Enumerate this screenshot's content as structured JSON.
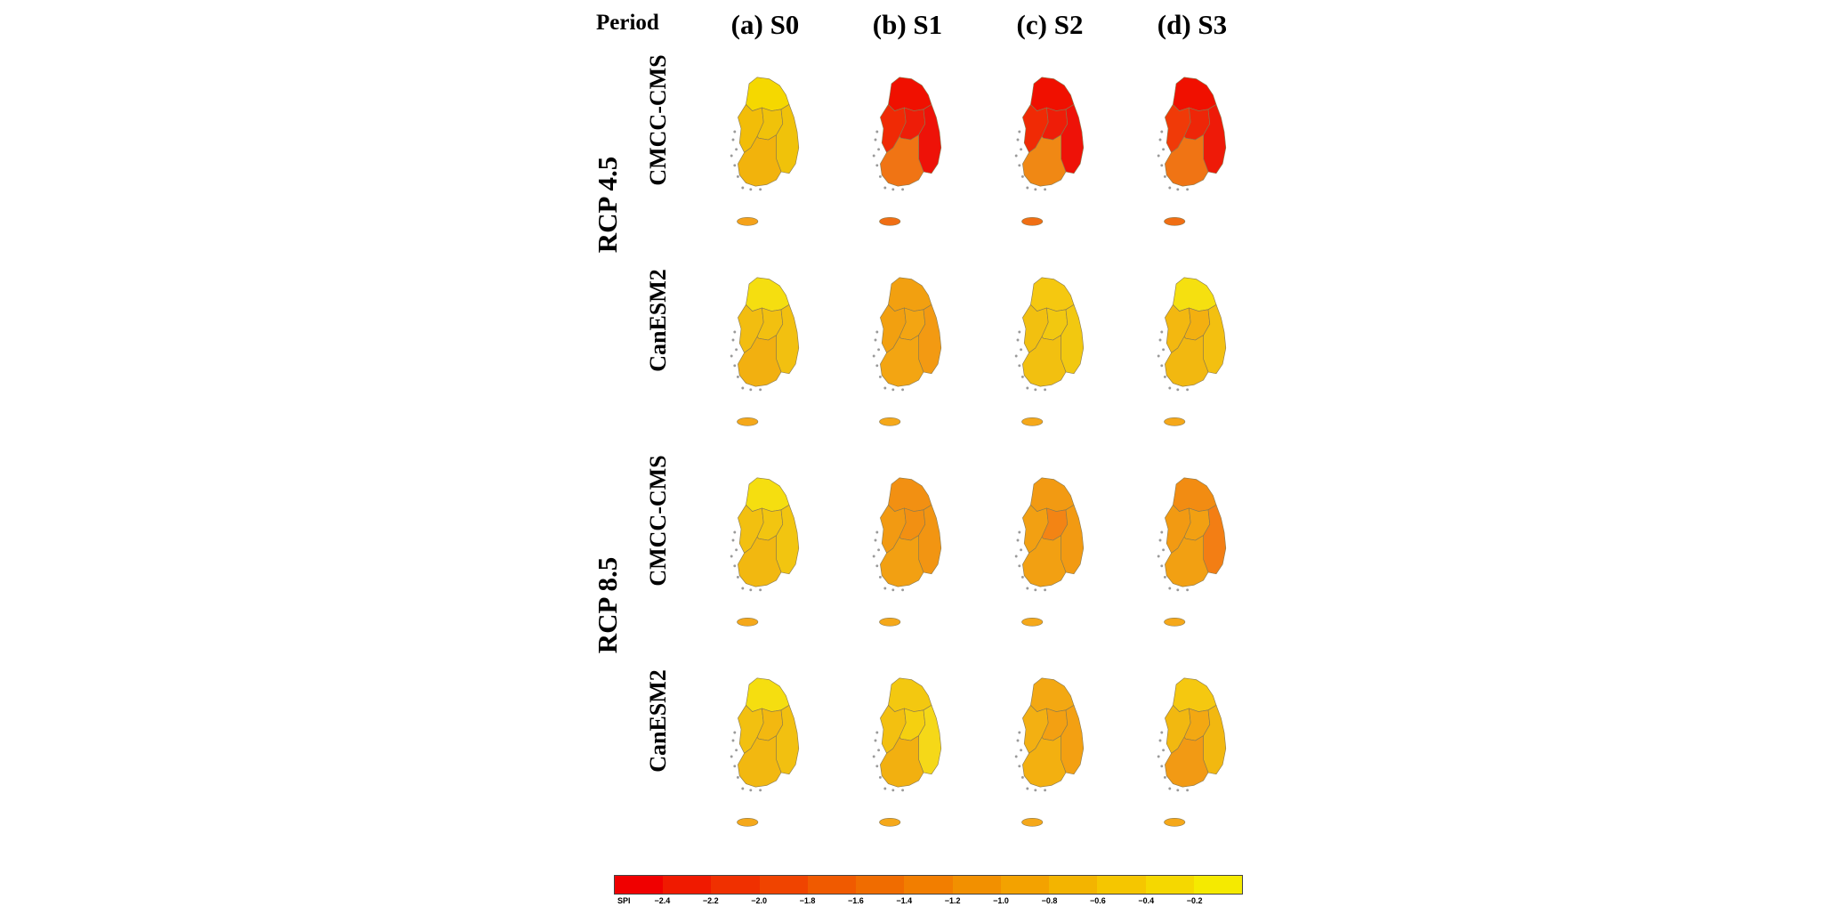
{
  "header": {
    "period_label": "Period",
    "columns": [
      "(a) S0",
      "(b) S1",
      "(c) S2",
      "(d) S3"
    ]
  },
  "scenarios": [
    {
      "label": "RCP 4.5",
      "models": [
        {
          "label": "CMCC-CMS",
          "maps": [
            {
              "north": "#f5d800",
              "west": "#f2bd08",
              "center": "#f0c20a",
              "east": "#f0c20a",
              "south": "#f2b30c",
              "jeju": "#f5a21a"
            },
            {
              "north": "#f01000",
              "west": "#f02a05",
              "center": "#ee1d08",
              "east": "#ee1208",
              "south": "#f07414",
              "jeju": "#f06e14"
            },
            {
              "north": "#f01000",
              "west": "#f02a05",
              "center": "#ee1d08",
              "east": "#ee1208",
              "south": "#f08814",
              "jeju": "#f06e14"
            },
            {
              "north": "#f01000",
              "west": "#f03a08",
              "center": "#ee2608",
              "east": "#ee1a08",
              "south": "#f07414",
              "jeju": "#f06e14"
            }
          ]
        },
        {
          "label": "CanESM2",
          "maps": [
            {
              "north": "#f5de10",
              "west": "#f2bd10",
              "center": "#f2c010",
              "east": "#f2c010",
              "south": "#f2b010",
              "jeju": "#f5a81a"
            },
            {
              "north": "#f2a010",
              "west": "#f2a010",
              "center": "#f3a512",
              "east": "#f39a12",
              "south": "#f3a512",
              "jeju": "#f5a81a"
            },
            {
              "north": "#f5c810",
              "west": "#f2c010",
              "center": "#f2c810",
              "east": "#f2c810",
              "south": "#f2c010",
              "jeju": "#f5a81a"
            },
            {
              "north": "#f5e010",
              "west": "#f3b810",
              "center": "#f3b010",
              "east": "#f3c010",
              "south": "#f2b810",
              "jeju": "#f5a81a"
            }
          ]
        }
      ]
    },
    {
      "label": "RCP 8.5",
      "models": [
        {
          "label": "CMCC-CMS",
          "maps": [
            {
              "north": "#f5de10",
              "west": "#f2c010",
              "center": "#f2c510",
              "east": "#f2c510",
              "south": "#f2b810",
              "jeju": "#f5a81a"
            },
            {
              "north": "#f29012",
              "west": "#f29a12",
              "center": "#f29012",
              "east": "#f29512",
              "south": "#f2a012",
              "jeju": "#f5a81a"
            },
            {
              "north": "#f29a12",
              "west": "#f2a012",
              "center": "#f38414",
              "east": "#f29a12",
              "south": "#f2a012",
              "jeju": "#f5a81a"
            },
            {
              "north": "#f28c12",
              "west": "#f29a12",
              "center": "#f2a012",
              "east": "#f37e14",
              "south": "#f2a012",
              "jeju": "#f5a81a"
            }
          ]
        },
        {
          "label": "CanESM2",
          "maps": [
            {
              "north": "#f5de10",
              "west": "#f2c010",
              "center": "#f3b810",
              "east": "#f2c010",
              "south": "#f2b810",
              "jeju": "#f5a81a"
            },
            {
              "north": "#f3c810",
              "west": "#f3c010",
              "center": "#f5d010",
              "east": "#f5d818",
              "south": "#f2b010",
              "jeju": "#f5a81a"
            },
            {
              "north": "#f3a812",
              "west": "#f3b012",
              "center": "#f3a012",
              "east": "#f3a012",
              "south": "#f3b010",
              "jeju": "#f5a81a"
            },
            {
              "north": "#f5c810",
              "west": "#f2b810",
              "center": "#f3a812",
              "east": "#f2b810",
              "south": "#f29a14",
              "jeju": "#f5a81a"
            }
          ]
        }
      ]
    }
  ],
  "colorbar": {
    "unit_label": "SPI",
    "colors": [
      "#f00000",
      "#f01a00",
      "#f03000",
      "#f04400",
      "#f05a00",
      "#f06c00",
      "#f27e00",
      "#f29000",
      "#f3a200",
      "#f3b400",
      "#f5c600",
      "#f5d800",
      "#f5ea00"
    ],
    "tick_labels": [
      "−2.4",
      "−2.2",
      "−2.0",
      "−1.8",
      "−1.6",
      "−1.4",
      "−1.2",
      "−1.0",
      "−0.8",
      "−0.6",
      "−0.4",
      "−0.2"
    ]
  }
}
